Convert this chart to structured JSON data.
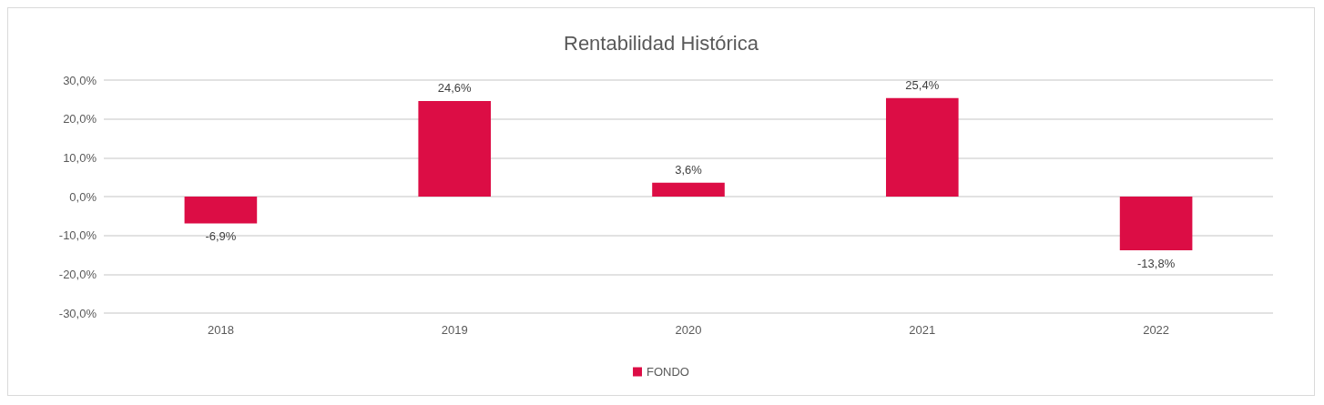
{
  "chart_data": {
    "type": "bar",
    "title": "Rentabilidad Histórica",
    "categories": [
      "2018",
      "2019",
      "2020",
      "2021",
      "2022"
    ],
    "series": [
      {
        "name": "FONDO",
        "color": "#dc0d45",
        "values": [
          -6.9,
          24.6,
          3.6,
          25.4,
          -13.8
        ],
        "value_labels": [
          "-6,9%",
          "24,6%",
          "3,6%",
          "25,4%",
          "-13,8%"
        ]
      }
    ],
    "ylim": [
      -30,
      30
    ],
    "yticks": [
      {
        "value": -30,
        "label": "-30,0%"
      },
      {
        "value": -20,
        "label": "-20,0%"
      },
      {
        "value": -10,
        "label": "-10,0%"
      },
      {
        "value": 0,
        "label": "0,0%"
      },
      {
        "value": 10,
        "label": "10,0%"
      },
      {
        "value": 20,
        "label": "20,0%"
      },
      {
        "value": 30,
        "label": "30,0%"
      }
    ],
    "grid": "y",
    "legend": "bottom"
  }
}
